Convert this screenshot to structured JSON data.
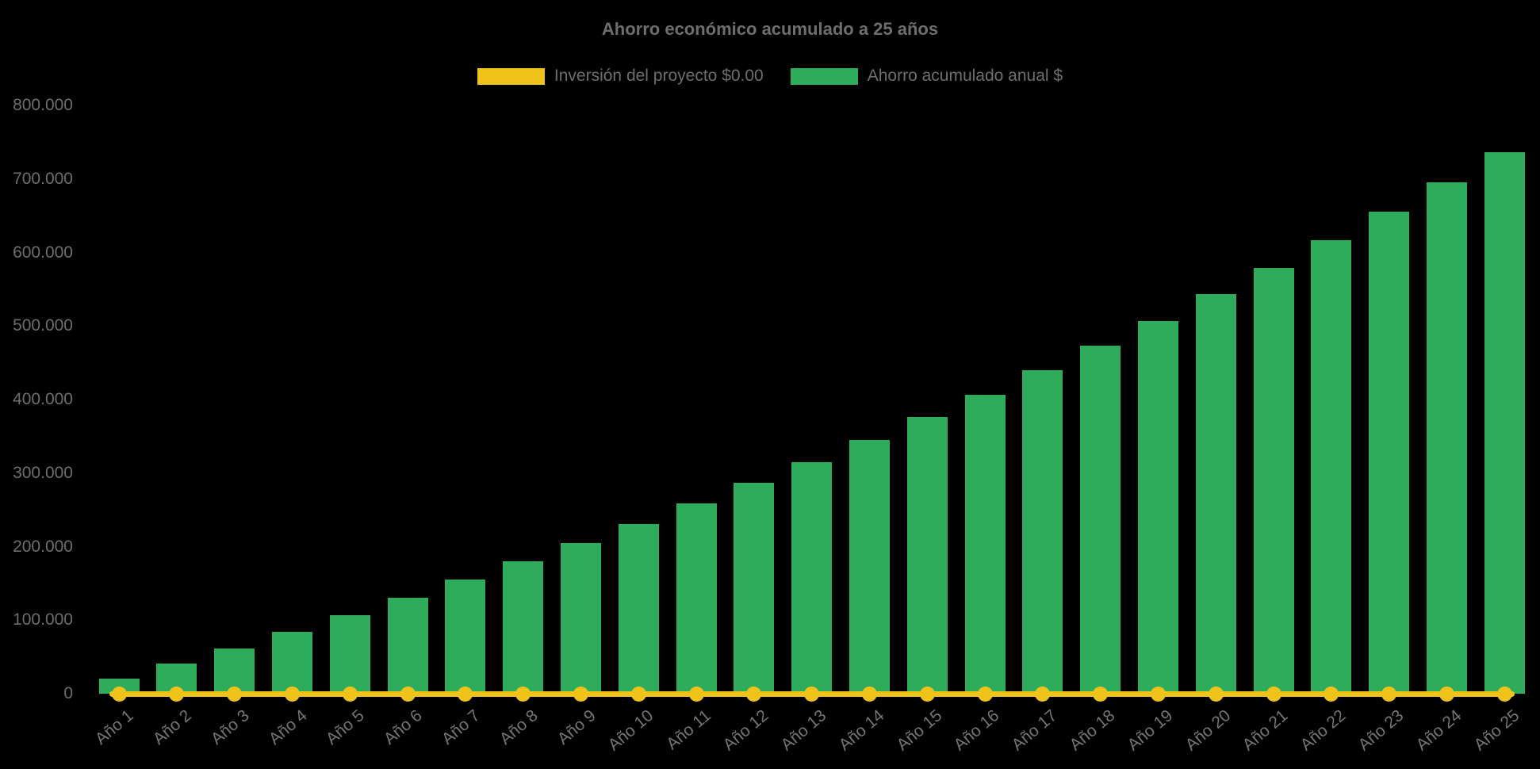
{
  "chart_data": {
    "type": "bar",
    "title": "Ahorro económico acumulado a 25 años",
    "categories": [
      "Año 1",
      "Año 2",
      "Año 3",
      "Año 4",
      "Año 5",
      "Año 6",
      "Año 7",
      "Año 8",
      "Año 9",
      "Año 10",
      "Año 11",
      "Año 12",
      "Año 13",
      "Año 14",
      "Año 15",
      "Año 16",
      "Año 17",
      "Año 18",
      "Año 19",
      "Año 20",
      "Año 21",
      "Año 22",
      "Año 23",
      "Año 24",
      "Año 25"
    ],
    "series": [
      {
        "name": "Inversión del proyecto $0.00",
        "type": "line",
        "color": "#EFC319",
        "values": [
          0,
          0,
          0,
          0,
          0,
          0,
          0,
          0,
          0,
          0,
          0,
          0,
          0,
          0,
          0,
          0,
          0,
          0,
          0,
          0,
          0,
          0,
          0,
          0,
          0
        ]
      },
      {
        "name": "Ahorro acumulado anual $",
        "type": "bar",
        "color": "#2EAC5C",
        "values": [
          20000,
          41000,
          62000,
          84000,
          107000,
          130000,
          155000,
          180000,
          205000,
          231000,
          259000,
          287000,
          315000,
          345000,
          376000,
          407000,
          440000,
          473000,
          507000,
          543000,
          579000,
          617000,
          656000,
          695000,
          736000
        ]
      }
    ],
    "ylim": [
      0,
      800000
    ],
    "y_ticks": [
      "0",
      "100.000",
      "200.000",
      "300.000",
      "400.000",
      "500.000",
      "600.000",
      "700.000",
      "800.000"
    ],
    "grid": false,
    "legend_position": "top",
    "background": "#000000",
    "text_color": "#6E6E6E"
  }
}
